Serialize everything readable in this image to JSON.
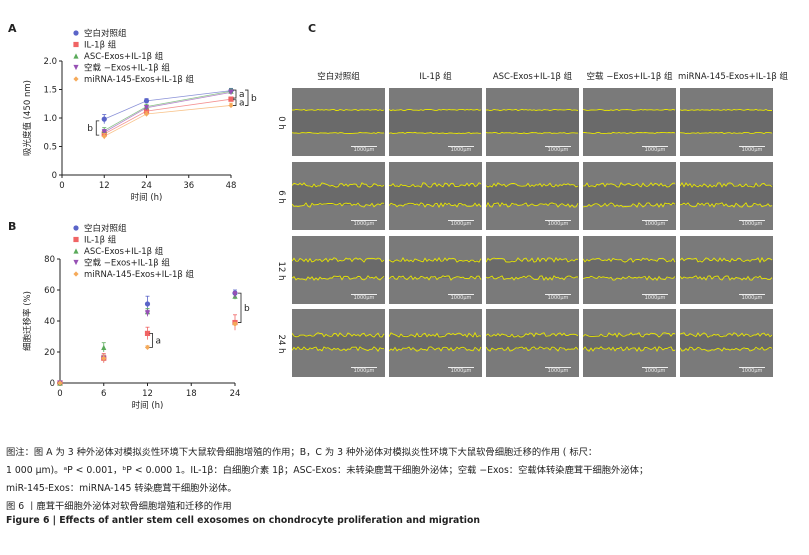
{
  "panels": {
    "a": "A",
    "b": "B",
    "c": "C"
  },
  "groups": [
    "空白对照组",
    "IL-1β 组",
    "ASC-Exos+IL-1β 组",
    "空载 −Exos+IL-1β 组",
    "miRNA-145-Exos+IL-1β 组"
  ],
  "colors": [
    "#5a64c8",
    "#f06464",
    "#5aaa5a",
    "#9650b4",
    "#f5aa5a"
  ],
  "chart_data": [
    {
      "type": "line",
      "title": "A",
      "xlabel": "时间 (h)",
      "ylabel": "吸光度值 (450 nm)",
      "x": [
        12,
        24,
        48
      ],
      "xticks": [
        "0",
        "12",
        "24",
        "36",
        "48"
      ],
      "xlim": [
        0,
        48
      ],
      "yticks": [
        "0",
        "0.5",
        "1.0",
        "1.5",
        "2.0"
      ],
      "ylim": [
        0,
        2.0
      ],
      "series": [
        {
          "name": "空白对照组",
          "values": [
            0.98,
            1.3,
            1.48
          ],
          "err": [
            0.08,
            0.04,
            0.04
          ]
        },
        {
          "name": "IL-1β 组",
          "values": [
            0.72,
            1.12,
            1.33
          ],
          "err": [
            0.05,
            0.04,
            0.04
          ]
        },
        {
          "name": "ASC-Exos+IL-1β 组",
          "values": [
            0.78,
            1.2,
            1.47
          ],
          "err": [
            0.05,
            0.04,
            0.04
          ]
        },
        {
          "name": "空载 −Exos+IL-1β 组",
          "values": [
            0.75,
            1.18,
            1.45
          ],
          "err": [
            0.05,
            0.04,
            0.04
          ]
        },
        {
          "name": "miRNA-145-Exos+IL-1β 组",
          "values": [
            0.68,
            1.07,
            1.22
          ],
          "err": [
            0.05,
            0.04,
            0.04
          ]
        }
      ],
      "annotations": [
        "b",
        "a",
        "a",
        "b"
      ]
    },
    {
      "type": "scatter",
      "title": "B",
      "xlabel": "时间 (h)",
      "ylabel": "细胞迁移率 (%)",
      "x": [
        0,
        6,
        12,
        24
      ],
      "xticks": [
        "0",
        "6",
        "12",
        "18",
        "24"
      ],
      "xlim": [
        0,
        24
      ],
      "yticks": [
        "0",
        "20",
        "40",
        "60",
        "80"
      ],
      "ylim": [
        0,
        80
      ],
      "series": [
        {
          "name": "空白对照组",
          "values": [
            0,
            16,
            51,
            58
          ],
          "err": [
            0,
            2,
            5,
            2
          ]
        },
        {
          "name": "IL-1β 组",
          "values": [
            0,
            16,
            32,
            39
          ],
          "err": [
            0,
            3,
            4,
            5
          ]
        },
        {
          "name": "ASC-Exos+IL-1β 组",
          "values": [
            0,
            23,
            46,
            56
          ],
          "err": [
            0,
            3,
            2,
            2
          ]
        },
        {
          "name": "空载 −Exos+IL-1β 组",
          "values": [
            0,
            16,
            45,
            57
          ],
          "err": [
            0,
            2,
            2,
            2
          ]
        },
        {
          "name": "miRNA-145-Exos+IL-1β 组",
          "values": [
            0,
            16,
            23,
            38
          ],
          "err": [
            0,
            2,
            1,
            1
          ]
        }
      ],
      "annotations": [
        "a",
        "b"
      ]
    }
  ],
  "grid": {
    "columns": [
      "空白对照组",
      "IL-1β 组",
      "ASC-Exos+IL-1β 组",
      "空载 −Exos+IL-1β 组",
      "miRNA-145-Exos+IL-1β 组"
    ],
    "rows": [
      "0 h",
      "6 h",
      "12 h",
      "24 h"
    ],
    "scale_bar": "1000μm"
  },
  "caption": {
    "line1": "图注：图 A 为 3 种外泌体对模拟炎性环境下大鼠软骨细胞增殖的作用；B，C 为 3 种外泌体对模拟炎性环境下大鼠软骨细胞迁移的作用 ( 标尺：",
    "line2": "1 000 μm)。ᵃP < 0.001，ᵇP < 0.000 1。IL-1β：白细胞介素 1β；ASC-Exos：未转染鹿茸干细胞外泌体；空载 −Exos：空载体转染鹿茸干细胞外泌体；",
    "line3": "miR-145-Exos：miRNA-145 转染鹿茸干细胞外泌体。",
    "title_cn": "图 6 丨鹿茸干细胞外泌体对软骨细胞增殖和迁移的作用",
    "title_en": "Figure 6  |  Effects of antler stem cell exosomes on chondrocyte proliferation and migration"
  }
}
